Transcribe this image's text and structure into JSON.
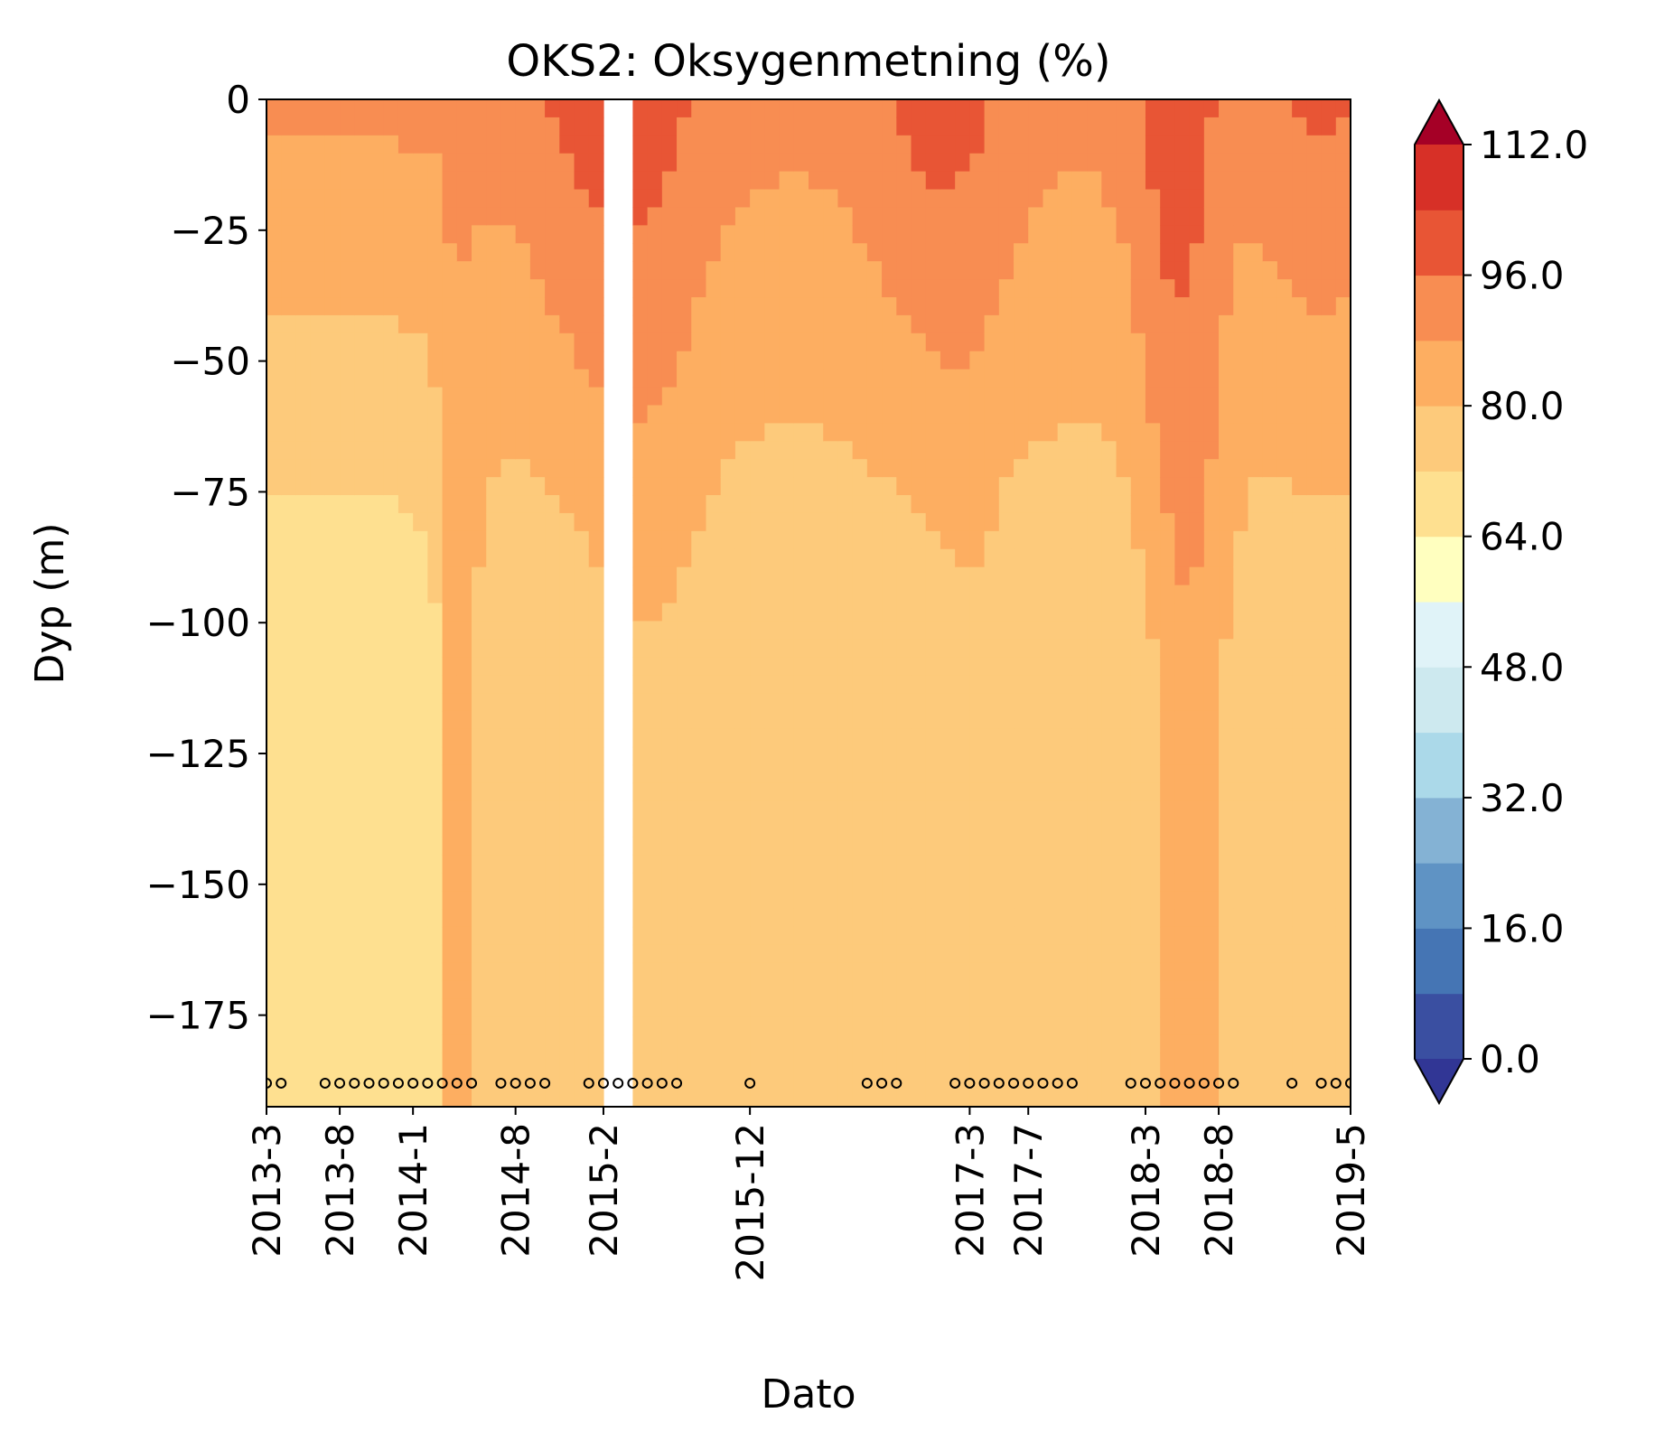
{
  "chart_data": {
    "type": "heatmap",
    "subtype": "filled-contour",
    "title": "OKS2: Oksygenmetning (%)",
    "xlabel": "Dato",
    "ylabel": "Dyp (m)",
    "x_unit": "year-month",
    "y_ticks": [
      0,
      -25,
      -50,
      -75,
      -100,
      -125,
      -150,
      -175
    ],
    "ylim": [
      -192.5,
      0
    ],
    "x_tick_labels": [
      "2013-3",
      "2013-8",
      "2014-1",
      "2014-8",
      "2015-2",
      "2015-12",
      "2017-3",
      "2017-7",
      "2018-3",
      "2018-8",
      "2019-5"
    ],
    "x_tick_dates": [
      "2013-03",
      "2013-08",
      "2014-01",
      "2014-08",
      "2015-02",
      "2015-12",
      "2017-03",
      "2017-07",
      "2018-03",
      "2018-08",
      "2019-05"
    ],
    "xlim": [
      "2013-03",
      "2019-05"
    ],
    "colorbar": {
      "colormap": "RdYlBu_r",
      "levels": [
        0,
        8,
        16,
        24,
        32,
        40,
        48,
        56,
        64,
        72,
        80,
        88,
        96,
        104,
        112
      ],
      "tick_labels": [
        "0.0",
        "16.0",
        "32.0",
        "48.0",
        "64.0",
        "80.0",
        "96.0",
        "112.0"
      ],
      "extend": "both",
      "colors": [
        "#313695",
        "#3a4fa1",
        "#4575b4",
        "#5f93c4",
        "#84b2d4",
        "#abd9e9",
        "#cde9ef",
        "#e0f3f8",
        "#ffffbf",
        "#fee090",
        "#fdca7b",
        "#fdae61",
        "#f88d52",
        "#e85535",
        "#d73027",
        "#a50026"
      ]
    },
    "sample_dates": [
      "2013-03",
      "2013-04",
      "2013-07",
      "2013-08",
      "2013-09",
      "2013-10",
      "2013-11",
      "2013-12",
      "2014-01",
      "2014-02",
      "2014-03",
      "2014-04",
      "2014-05",
      "2014-07",
      "2014-08",
      "2014-09",
      "2014-10",
      "2015-01",
      "2015-02",
      "2015-03",
      "2015-04",
      "2015-05",
      "2015-06",
      "2015-07",
      "2015-12",
      "2016-08",
      "2016-09",
      "2016-10",
      "2017-02",
      "2017-03",
      "2017-04",
      "2017-05",
      "2017-06",
      "2017-07",
      "2017-08",
      "2017-09",
      "2017-10",
      "2018-02",
      "2018-03",
      "2018-04",
      "2018-05",
      "2018-06",
      "2018-07",
      "2018-08",
      "2018-09",
      "2019-01",
      "2019-03",
      "2019-04",
      "2019-05"
    ],
    "sample_marker_depth": -188,
    "gaps": [
      {
        "from": "2015-02",
        "to": "2015-04",
        "depth_from": 0,
        "depth_to": -192.5
      }
    ]
  }
}
